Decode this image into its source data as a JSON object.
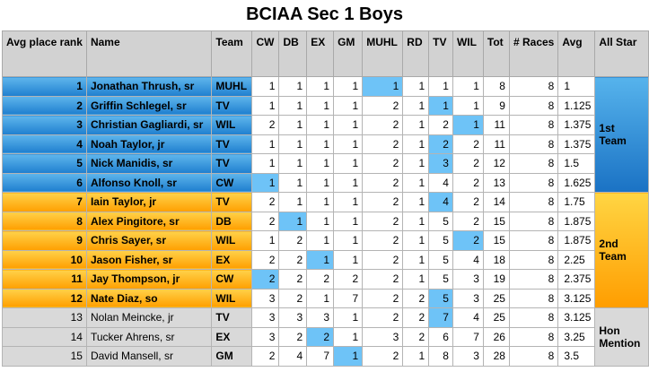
{
  "title": "BCIAA Sec 1 Boys",
  "headers": {
    "rank": "Avg place rank",
    "name": "Name",
    "team": "Team",
    "cw": "CW",
    "db": "DB",
    "ex": "EX",
    "gm": "GM",
    "muhl": "MUHL",
    "rd": "RD",
    "tv": "TV",
    "wil": "WIL",
    "tot": "Tot",
    "races": "# Races",
    "avg": "Avg",
    "allstar": "All Star"
  },
  "groups": {
    "first": "1st Team",
    "second": "2nd Team",
    "hon": "Hon Mention"
  },
  "colors": {
    "blue": "#2a8ad8",
    "orange": "#ffb30f",
    "gray": "#d9d9d9",
    "highlight": "#6ec3f7"
  },
  "rows": [
    {
      "rank": "1",
      "name": "Jonathan Thrush, sr",
      "team": "MUHL",
      "cw": "1",
      "db": "1",
      "ex": "1",
      "gm": "1",
      "muhl": "1",
      "rd": "1",
      "tv": "1",
      "wil": "1",
      "tot": "8",
      "races": "8",
      "avg": "1"
    },
    {
      "rank": "2",
      "name": "Griffin Schlegel, sr",
      "team": "TV",
      "cw": "1",
      "db": "1",
      "ex": "1",
      "gm": "1",
      "muhl": "2",
      "rd": "1",
      "tv": "1",
      "wil": "1",
      "tot": "9",
      "races": "8",
      "avg": "1.125"
    },
    {
      "rank": "3",
      "name": "Christian Gagliardi, sr",
      "team": "WIL",
      "cw": "2",
      "db": "1",
      "ex": "1",
      "gm": "1",
      "muhl": "2",
      "rd": "1",
      "tv": "2",
      "wil": "1",
      "tot": "11",
      "races": "8",
      "avg": "1.375"
    },
    {
      "rank": "4",
      "name": "Noah Taylor, jr",
      "team": "TV",
      "cw": "1",
      "db": "1",
      "ex": "1",
      "gm": "1",
      "muhl": "2",
      "rd": "1",
      "tv": "2",
      "wil": "2",
      "tot": "11",
      "races": "8",
      "avg": "1.375"
    },
    {
      "rank": "5",
      "name": "Nick Manidis, sr",
      "team": "TV",
      "cw": "1",
      "db": "1",
      "ex": "1",
      "gm": "1",
      "muhl": "2",
      "rd": "1",
      "tv": "3",
      "wil": "2",
      "tot": "12",
      "races": "8",
      "avg": "1.5"
    },
    {
      "rank": "6",
      "name": "Alfonso Knoll, sr",
      "team": "CW",
      "cw": "1",
      "db": "1",
      "ex": "1",
      "gm": "1",
      "muhl": "2",
      "rd": "1",
      "tv": "4",
      "wil": "2",
      "tot": "13",
      "races": "8",
      "avg": "1.625"
    },
    {
      "rank": "7",
      "name": "Iain Taylor, jr",
      "team": "TV",
      "cw": "2",
      "db": "1",
      "ex": "1",
      "gm": "1",
      "muhl": "2",
      "rd": "1",
      "tv": "4",
      "wil": "2",
      "tot": "14",
      "races": "8",
      "avg": "1.75"
    },
    {
      "rank": "8",
      "name": "Alex Pingitore, sr",
      "team": "DB",
      "cw": "2",
      "db": "1",
      "ex": "1",
      "gm": "1",
      "muhl": "2",
      "rd": "1",
      "tv": "5",
      "wil": "2",
      "tot": "15",
      "races": "8",
      "avg": "1.875"
    },
    {
      "rank": "9",
      "name": "Chris Sayer, sr",
      "team": "WIL",
      "cw": "1",
      "db": "2",
      "ex": "1",
      "gm": "1",
      "muhl": "2",
      "rd": "1",
      "tv": "5",
      "wil": "2",
      "tot": "15",
      "races": "8",
      "avg": "1.875"
    },
    {
      "rank": "10",
      "name": "Jason Fisher, sr",
      "team": "EX",
      "cw": "2",
      "db": "2",
      "ex": "1",
      "gm": "1",
      "muhl": "2",
      "rd": "1",
      "tv": "5",
      "wil": "4",
      "tot": "18",
      "races": "8",
      "avg": "2.25"
    },
    {
      "rank": "11",
      "name": "Jay Thompson, jr",
      "team": "CW",
      "cw": "2",
      "db": "2",
      "ex": "2",
      "gm": "2",
      "muhl": "2",
      "rd": "1",
      "tv": "5",
      "wil": "3",
      "tot": "19",
      "races": "8",
      "avg": "2.375"
    },
    {
      "rank": "12",
      "name": "Nate Diaz, so",
      "team": "WIL",
      "cw": "3",
      "db": "2",
      "ex": "1",
      "gm": "7",
      "muhl": "2",
      "rd": "2",
      "tv": "5",
      "wil": "3",
      "tot": "25",
      "races": "8",
      "avg": "3.125"
    },
    {
      "rank": "13",
      "name": "Nolan Meincke, jr",
      "team": "TV",
      "cw": "3",
      "db": "3",
      "ex": "3",
      "gm": "1",
      "muhl": "2",
      "rd": "2",
      "tv": "7",
      "wil": "4",
      "tot": "25",
      "races": "8",
      "avg": "3.125"
    },
    {
      "rank": "14",
      "name": "Tucker Ahrens, sr",
      "team": "EX",
      "cw": "3",
      "db": "2",
      "ex": "2",
      "gm": "1",
      "muhl": "3",
      "rd": "2",
      "tv": "6",
      "wil": "7",
      "tot": "26",
      "races": "8",
      "avg": "3.25"
    },
    {
      "rank": "15",
      "name": "David Mansell, sr",
      "team": "GM",
      "cw": "2",
      "db": "4",
      "ex": "7",
      "gm": "1",
      "muhl": "2",
      "rd": "1",
      "tv": "8",
      "wil": "3",
      "tot": "28",
      "races": "8",
      "avg": "3.5"
    }
  ]
}
